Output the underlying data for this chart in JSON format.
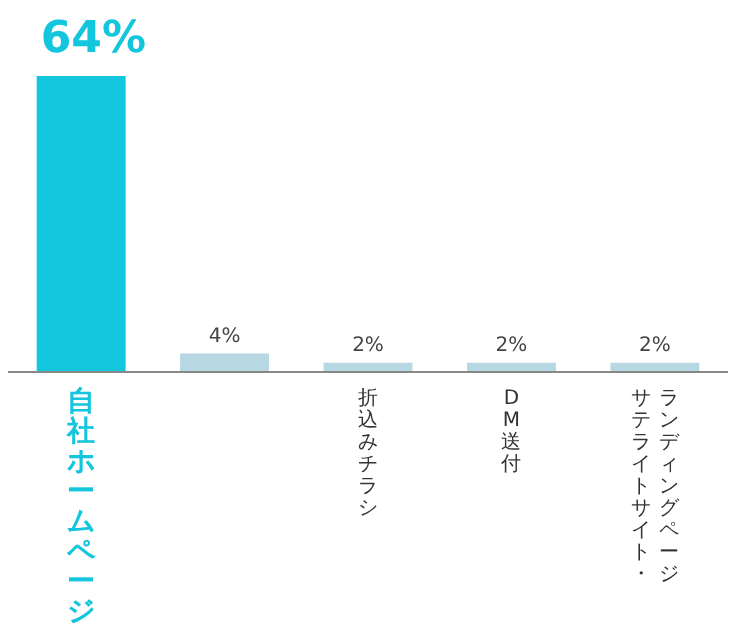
{
  "chart_data": {
    "type": "bar",
    "categories": [
      "自社ホームページ",
      null,
      "折込みチラシ",
      "DM送付",
      "サテライトサイト・ランディングページ"
    ],
    "values": [
      64,
      4,
      2,
      2,
      2
    ],
    "colors": [
      "#13c6dd",
      "#b7d8e2",
      "#b7d8e2",
      "#b7d8e2",
      "#b7d8e2"
    ],
    "value_labels": [
      "64%",
      "4%",
      "2%",
      "2%",
      "2%"
    ]
  }
}
